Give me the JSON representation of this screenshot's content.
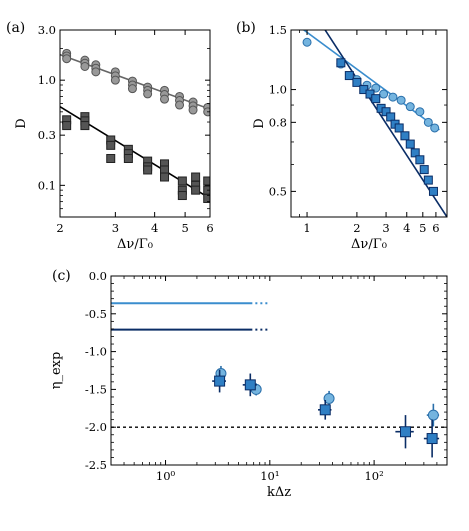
{
  "chart_data": [
    {
      "panel_label": "(a)",
      "type": "scatter",
      "xscale": "log",
      "yscale": "log",
      "xlim": [
        2,
        6
      ],
      "ylim": [
        0.05,
        3.0
      ],
      "xticks": [
        2,
        3,
        4,
        5,
        6
      ],
      "xtick_labels": [
        "2",
        "3",
        "4",
        "5",
        "6"
      ],
      "yticks": [
        3.0,
        1.0,
        0.3,
        0.1
      ],
      "ytick_labels": [
        "3.0",
        "1.0",
        "0.3",
        "0.1"
      ],
      "xlabel": "Δν/Γ₀",
      "ylabel": "D",
      "series": [
        {
          "marker": "circle",
          "color": "#999999",
          "edge": "#555555",
          "x": [
            2.1,
            2.1,
            2.1,
            2.4,
            2.4,
            2.4,
            2.6,
            2.6,
            2.6,
            3.0,
            3.0,
            3.0,
            3.4,
            3.4,
            3.4,
            3.8,
            3.8,
            3.8,
            4.3,
            4.3,
            4.3,
            4.8,
            4.8,
            4.8,
            5.3,
            5.3,
            5.3,
            5.9,
            5.9
          ],
          "y": [
            1.8,
            1.7,
            1.6,
            1.55,
            1.45,
            1.35,
            1.4,
            1.3,
            1.2,
            1.2,
            1.1,
            1.0,
            0.98,
            0.9,
            0.83,
            0.86,
            0.8,
            0.74,
            0.8,
            0.73,
            0.66,
            0.7,
            0.64,
            0.58,
            0.62,
            0.57,
            0.52,
            0.55,
            0.5
          ],
          "fit": {
            "x": [
              2.0,
              6.0
            ],
            "y": [
              1.75,
              0.53
            ],
            "color": "#666666"
          }
        },
        {
          "marker": "square",
          "color": "#555555",
          "edge": "#222222",
          "x": [
            2.1,
            2.1,
            2.4,
            2.4,
            2.4,
            2.9,
            2.9,
            2.9,
            3.3,
            3.3,
            3.3,
            3.8,
            3.8,
            3.8,
            4.3,
            4.3,
            4.3,
            4.9,
            4.9,
            4.9,
            5.4,
            5.4,
            5.4,
            5.9,
            5.9,
            5.9
          ],
          "y": [
            0.42,
            0.37,
            0.45,
            0.41,
            0.37,
            0.27,
            0.24,
            0.18,
            0.22,
            0.2,
            0.18,
            0.17,
            0.15,
            0.14,
            0.16,
            0.14,
            0.12,
            0.11,
            0.09,
            0.08,
            0.12,
            0.1,
            0.09,
            0.11,
            0.09,
            0.075
          ],
          "fit": {
            "x": [
              2.0,
              6.0
            ],
            "y": [
              0.56,
              0.075
            ],
            "color": "#000000"
          }
        }
      ]
    },
    {
      "panel_label": "(b)",
      "type": "scatter",
      "xscale": "log",
      "yscale": "log",
      "xlim": [
        0.8,
        7.0
      ],
      "ylim": [
        0.42,
        1.5
      ],
      "xticks": [
        1,
        2,
        3,
        4,
        5,
        6
      ],
      "xtick_labels": [
        "1",
        "2",
        "3",
        "4",
        "5",
        "6"
      ],
      "yticks": [
        1.5,
        1.0,
        0.8,
        0.5
      ],
      "ytick_labels": [
        "1.5",
        "1.0",
        "0.8",
        "0.5"
      ],
      "xlabel": "Δν/Γ₀",
      "ylabel": "D",
      "series": [
        {
          "marker": "circle",
          "color": "#74b4df",
          "edge": "#2a6faa",
          "x": [
            1.0,
            1.6,
            2.0,
            2.3,
            2.6,
            2.9,
            3.3,
            3.7,
            4.2,
            4.8,
            5.4,
            5.9
          ],
          "y": [
            1.38,
            1.19,
            1.07,
            1.03,
            1.01,
            0.97,
            0.95,
            0.93,
            0.89,
            0.86,
            0.8,
            0.77
          ],
          "fit": {
            "x": [
              0.8,
              6.3
            ],
            "y": [
              1.6,
              0.76
            ],
            "color": "#3a8dce"
          }
        },
        {
          "marker": "square",
          "color": "#2f7fc4",
          "edge": "#0a2d66",
          "x": [
            1.6,
            1.8,
            2.0,
            2.2,
            2.4,
            2.6,
            2.8,
            3.0,
            3.2,
            3.4,
            3.6,
            3.9,
            4.2,
            4.5,
            4.8,
            5.1,
            5.4,
            5.8
          ],
          "y": [
            1.2,
            1.1,
            1.05,
            1.0,
            0.97,
            0.94,
            0.88,
            0.86,
            0.83,
            0.79,
            0.77,
            0.73,
            0.69,
            0.65,
            0.62,
            0.58,
            0.54,
            0.5
          ],
          "fit": {
            "x": [
              1.2,
              7.0
            ],
            "y": [
              1.58,
              0.42
            ],
            "color": "#0a2d66"
          }
        }
      ]
    },
    {
      "panel_label": "(c)",
      "type": "scatter",
      "xscale": "log",
      "xlim": [
        0.3,
        500
      ],
      "ylim": [
        -2.5,
        0.0
      ],
      "xticks": [
        1,
        10,
        100
      ],
      "xtick_labels": [
        "10⁰",
        "10¹",
        "10²"
      ],
      "yticks": [
        0.0,
        -0.5,
        -1.0,
        -1.5,
        -2.0,
        -2.5
      ],
      "ytick_labels": [
        "0.0",
        "-0.5",
        "-1.0",
        "-1.5",
        "-2.0",
        "-2.5"
      ],
      "xlabel": "kΔz",
      "ylabel": "η_exp",
      "hlines": [
        {
          "y": -0.36,
          "x0": 0.3,
          "x1": 6.8,
          "dotted_to": 10.0,
          "color": "#3a8dce"
        },
        {
          "y": -0.71,
          "x0": 0.3,
          "x1": 6.8,
          "dotted_to": 10.0,
          "color": "#0a2d66"
        },
        {
          "y": -2.0,
          "x0": 0.3,
          "x1": 500,
          "style": "dashed",
          "color": "#000000"
        }
      ],
      "series": [
        {
          "marker": "circle",
          "color": "#74b4df",
          "edge": "#2a6faa",
          "x": [
            3.4,
            7.4,
            37,
            370
          ],
          "y": [
            -1.29,
            -1.5,
            -1.62,
            -1.84
          ],
          "xerr": [
            0.3,
            0.8,
            4,
            50
          ],
          "yerr": [
            0.1,
            0.08,
            0.1,
            0.15
          ]
        },
        {
          "marker": "square",
          "color": "#2f7fc4",
          "edge": "#0a2d66",
          "x": [
            3.3,
            6.5,
            34,
            200,
            360
          ],
          "y": [
            -1.39,
            -1.44,
            -1.77,
            -2.06,
            -2.15
          ],
          "xerr": [
            0.5,
            1.0,
            5,
            40,
            60
          ],
          "yerr": [
            0.15,
            0.15,
            0.13,
            0.22,
            0.25
          ]
        }
      ]
    }
  ]
}
